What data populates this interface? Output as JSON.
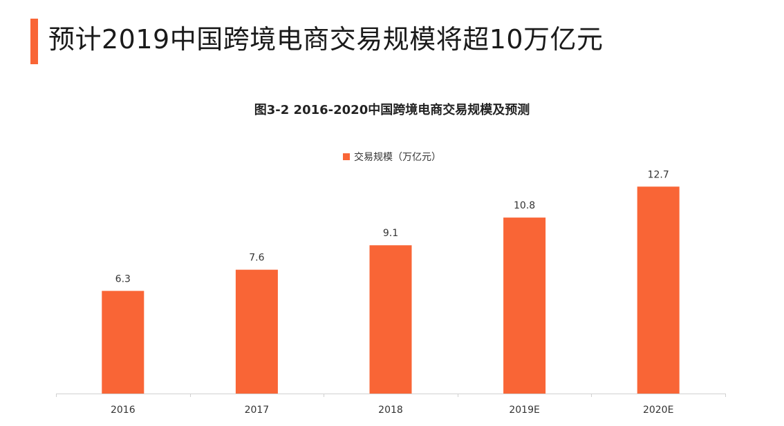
{
  "page": {
    "title": "预计2019中国跨境电商交易规模将超10万亿元",
    "accent_color": "#f96536"
  },
  "chart_data": {
    "type": "bar",
    "title": "图3-2 2016-2020中国跨境电商交易规模及预测",
    "categories": [
      "2016",
      "2017",
      "2018",
      "2019E",
      "2020E"
    ],
    "series": [
      {
        "name": "交易规模（万亿元）",
        "values": [
          6.3,
          7.6,
          9.1,
          10.8,
          12.7
        ],
        "color": "#f96536"
      }
    ],
    "data_labels": [
      "6.3",
      "7.6",
      "9.1",
      "10.8",
      "12.7"
    ],
    "xlabel": "",
    "ylabel": "",
    "ylim": [
      0,
      14
    ],
    "grid": false,
    "y_axis_visible": false,
    "legend_position": "top-center"
  }
}
